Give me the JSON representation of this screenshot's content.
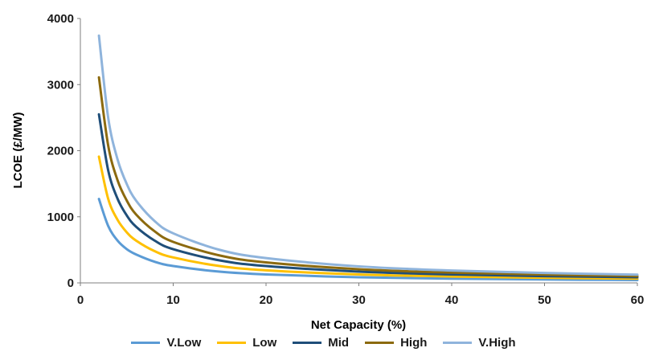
{
  "chart_data": {
    "type": "line",
    "title": "",
    "xlabel": "Net Capacity (%)",
    "ylabel": "LCOE (£/MW)",
    "xlim": [
      0,
      60
    ],
    "ylim": [
      0,
      4000
    ],
    "x_ticks": [
      0,
      10,
      20,
      30,
      40,
      50,
      60
    ],
    "y_ticks": [
      0,
      1000,
      2000,
      3000,
      4000
    ],
    "grid": false,
    "legend_position": "bottom",
    "x": [
      2,
      3,
      4,
      5,
      6,
      8,
      10,
      15,
      20,
      30,
      40,
      50,
      60
    ],
    "series": [
      {
        "name": "V.Low",
        "color": "#5b9bd5",
        "values": [
          1270,
          860,
          640,
          510,
          430,
          320,
          255,
          170,
          128,
          85,
          64,
          51,
          43
        ]
      },
      {
        "name": "Low",
        "color": "#ffc000",
        "values": [
          1910,
          1270,
          955,
          765,
          640,
          480,
          385,
          255,
          190,
          128,
          96,
          77,
          64
        ]
      },
      {
        "name": "Mid",
        "color": "#1f4e79",
        "values": [
          2550,
          1700,
          1275,
          1020,
          850,
          640,
          510,
          340,
          255,
          170,
          128,
          102,
          85
        ]
      },
      {
        "name": "High",
        "color": "#8c6a0f",
        "values": [
          3110,
          2075,
          1555,
          1245,
          1035,
          780,
          620,
          415,
          310,
          207,
          155,
          124,
          104
        ]
      },
      {
        "name": "V.High",
        "color": "#8fb4dc",
        "values": [
          3740,
          2495,
          1870,
          1495,
          1245,
          935,
          750,
          500,
          375,
          250,
          187,
          150,
          125
        ]
      }
    ]
  }
}
